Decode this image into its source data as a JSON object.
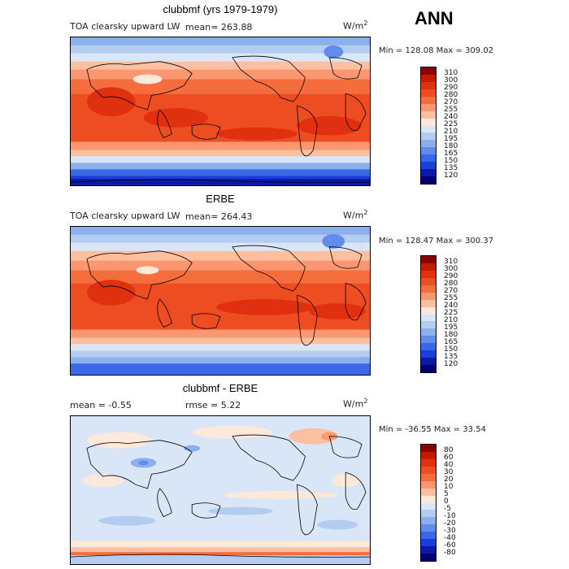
{
  "season": "ANN",
  "units_prefix": "W/m",
  "units_exp": "2",
  "panels": [
    {
      "title": "clubbmf (yrs 1979-1979)",
      "left_label": "TOA clearsky upward LW",
      "mean_text": "mean=  263.88",
      "minmax": "Min = 128.08 Max = 309.02",
      "levels": [
        "310",
        "300",
        "290",
        "280",
        "270",
        "255",
        "240",
        "225",
        "210",
        "195",
        "180",
        "165",
        "150",
        "135",
        "120"
      ]
    },
    {
      "title": "ERBE",
      "left_label": "TOA clearsky upward LW",
      "mean_text": "mean=  264.43",
      "minmax": "Min = 128.47 Max = 300.37",
      "levels": [
        "310",
        "300",
        "290",
        "280",
        "270",
        "255",
        "240",
        "225",
        "210",
        "195",
        "180",
        "165",
        "150",
        "135",
        "120"
      ]
    },
    {
      "title": "clubbmf - ERBE",
      "left_label": "mean =   -0.55",
      "mean_text": "rmse =    5.22",
      "minmax": "Min = -36.55 Max =  33.54",
      "levels": [
        "80",
        "60",
        "40",
        "30",
        "20",
        "10",
        "5",
        "0",
        "-5",
        "-10",
        "-20",
        "-30",
        "-40",
        "-60",
        "-80"
      ]
    }
  ],
  "colors": {
    "abs_scale": [
      "#8b0000",
      "#c41a00",
      "#e03010",
      "#ee4d22",
      "#f56d3d",
      "#fa9670",
      "#fcbfa0",
      "#fde8da",
      "#d8e6f7",
      "#b3ccf0",
      "#8cb0ec",
      "#628cec",
      "#3a68e8",
      "#1a3fd9",
      "#0a1aa8",
      "#000070"
    ],
    "diff_scale": [
      "#8b0000",
      "#c41a00",
      "#e03010",
      "#ee4d22",
      "#f56d3d",
      "#fa9670",
      "#fcbfa0",
      "#fde8da",
      "#d8e6f7",
      "#b3ccf0",
      "#8cb0ec",
      "#628cec",
      "#3a68e8",
      "#1a3fd9",
      "#0a1aa8",
      "#000070"
    ]
  }
}
